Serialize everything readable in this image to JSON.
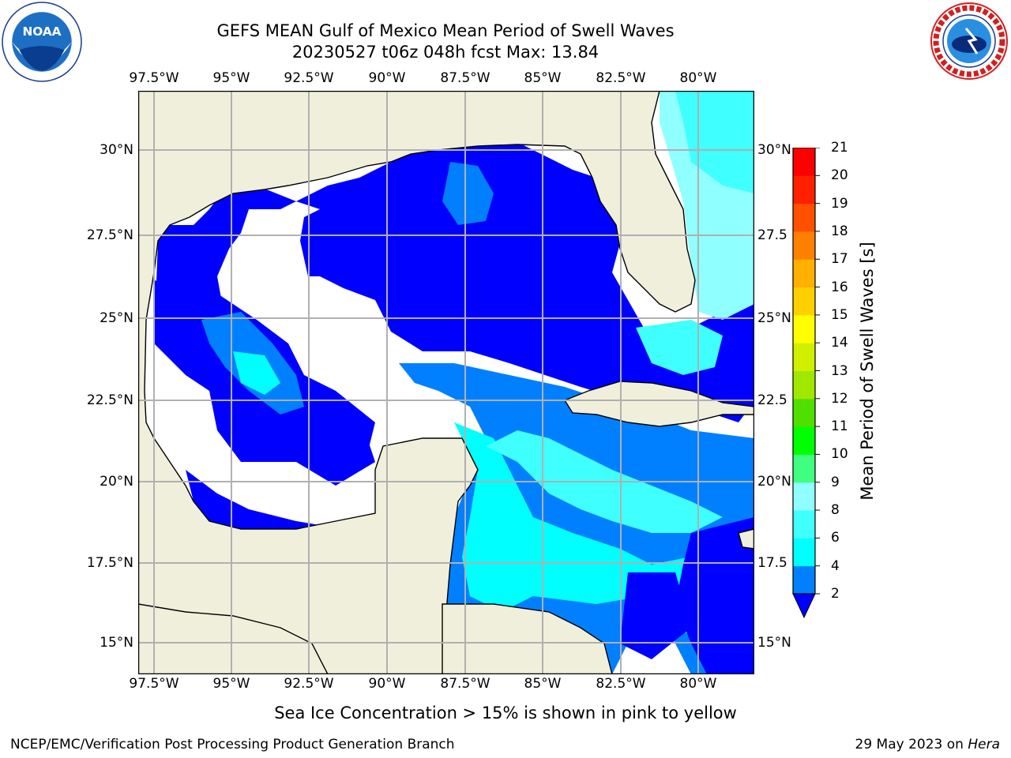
{
  "title_line1": "GEFS MEAN Gulf of Mexico Mean Period of Swell Waves",
  "title_line2": "20230527 t06z 048h fcst   Max: 13.84",
  "lon_ticks": [
    "97.5°W",
    "95°W",
    "92.5°W",
    "90°W",
    "87.5°W",
    "85°W",
    "82.5°W",
    "80°W"
  ],
  "lat_ticks": [
    "30°N",
    "27.5°N",
    "25°N",
    "22.5°N",
    "20°N",
    "17.5°N",
    "15°N"
  ],
  "lat_ticks_right": [
    "30°N",
    "27.5",
    "25°N",
    "22.5",
    "20°N",
    "17.5",
    "15°N"
  ],
  "colorbar": {
    "label": "Mean Period of Swell Waves [s]",
    "levels": [
      "2",
      "4",
      "6",
      "8",
      "9",
      "10",
      "11",
      "12",
      "13",
      "14",
      "15",
      "16",
      "17",
      "18",
      "19",
      "20",
      "21"
    ],
    "colors": [
      "#0000ff",
      "#0080ff",
      "#00ffff",
      "#40ffff",
      "#90ffff",
      "#40ff80",
      "#00ff00",
      "#50e000",
      "#a0e800",
      "#d0f000",
      "#ffff00",
      "#ffd000",
      "#ffb000",
      "#ff8000",
      "#ff5000",
      "#ff2000",
      "#ff0000"
    ],
    "extend_color": "#0000ff"
  },
  "map": {
    "land_color": "#efefdc",
    "ocean_low_color": "#ffffff",
    "grid_color": "#b0b0b0"
  },
  "logos": {
    "left_text": "NOAA",
    "right_text": "NATIONAL WEATHER SERVICE"
  },
  "note": "Sea Ice Concentration > 15% is shown in pink to yellow",
  "footer_left": "NCEP/EMC/Verification Post Processing Product Generation Branch",
  "footer_date": "29 May 2023 on ",
  "footer_host": "Hera"
}
